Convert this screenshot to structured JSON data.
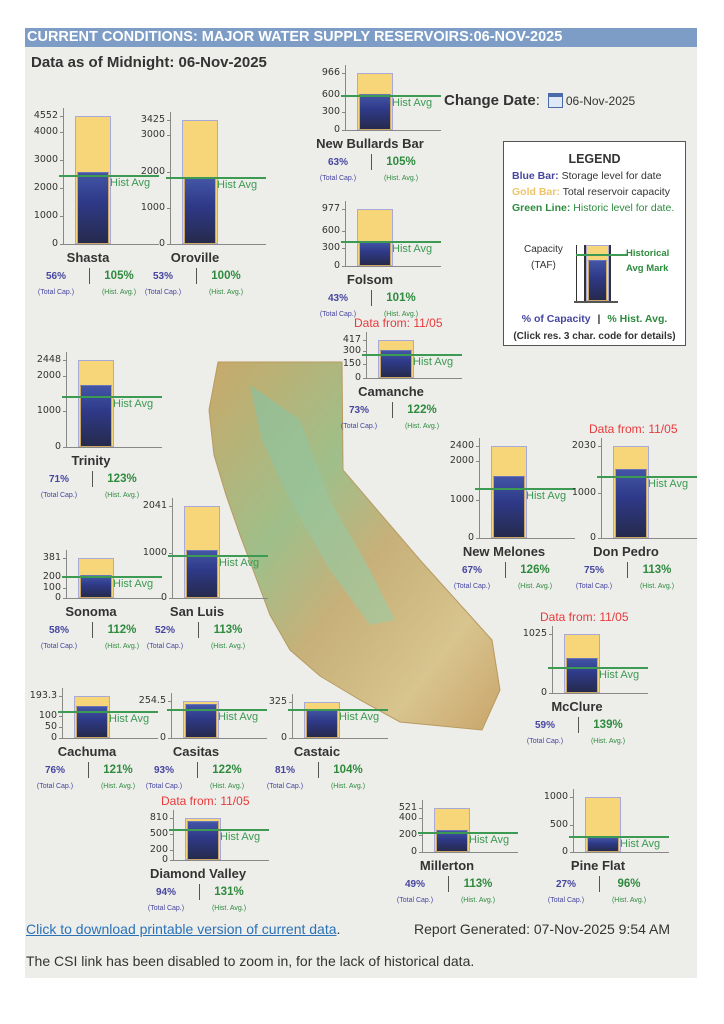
{
  "header": {
    "title": "CURRENT CONDITIONS: MAJOR WATER SUPPLY RESERVOIRS:06-NOV-2025"
  },
  "as_of": "Data as of Midnight: 06-Nov-2025",
  "change_date": {
    "label": "Change Date",
    "colon": ":",
    "value": "06-Nov-2025",
    "icon": "calendar-icon"
  },
  "legend": {
    "title": "LEGEND",
    "blue_key": "Blue Bar:",
    "blue_text": "Storage level for date",
    "gold_key": "Gold Bar:",
    "gold_text": "Total reservoir capacity",
    "green_key": "Green Line:",
    "green_text": "Historic level for date.",
    "capacity": "Capacity",
    "taf": "(TAF)",
    "hist1": "Historical",
    "hist2": "Avg Mark",
    "pct_cap": "% of Capacity",
    "sep": "|",
    "pct_hist": "% Hist. Avg.",
    "click_note": "(Click res. 3 char. code for details)"
  },
  "labels": {
    "hist_avg": "Hist Avg",
    "total_cap": "(Total Cap.)",
    "hist_avg_sub": "(Hist. Avg.)",
    "sep": "|"
  },
  "colors": {
    "storage": "#3a4a9c",
    "capacity": "#f6d678",
    "historic": "#3d9a52",
    "header": "#7d9dc7",
    "stale_note": "#e83a3a"
  },
  "chart_data": {
    "type": "bar",
    "units": "TAF",
    "reservoirs": [
      {
        "name": "Shasta",
        "capacity": 4552,
        "ticks": [
          0,
          1000,
          2000,
          3000,
          4000,
          4552
        ],
        "pct_capacity": "56%",
        "pct_hist": "105%",
        "data_from": ""
      },
      {
        "name": "Oroville",
        "capacity": 3425,
        "ticks": [
          0,
          1000,
          2000,
          3000,
          3425
        ],
        "pct_capacity": "53%",
        "pct_hist": "100%",
        "data_from": ""
      },
      {
        "name": "New Bullards Bar",
        "capacity": 966,
        "ticks": [
          0,
          300,
          600,
          966
        ],
        "pct_capacity": "63%",
        "pct_hist": "105%",
        "data_from": ""
      },
      {
        "name": "Folsom",
        "capacity": 977,
        "ticks": [
          0,
          300,
          600,
          977
        ],
        "pct_capacity": "43%",
        "pct_hist": "101%",
        "data_from": ""
      },
      {
        "name": "Trinity",
        "capacity": 2448,
        "ticks": [
          0,
          1000,
          2000,
          2448
        ],
        "pct_capacity": "71%",
        "pct_hist": "123%",
        "data_from": ""
      },
      {
        "name": "Camanche",
        "capacity": 417,
        "ticks": [
          0,
          150,
          300,
          417
        ],
        "pct_capacity": "73%",
        "pct_hist": "122%",
        "data_from": "Data from: 11/05"
      },
      {
        "name": "New Melones",
        "capacity": 2400,
        "ticks": [
          0,
          1000,
          2000,
          2400
        ],
        "pct_capacity": "67%",
        "pct_hist": "126%",
        "data_from": ""
      },
      {
        "name": "Don Pedro",
        "capacity": 2030,
        "ticks": [
          0,
          1000,
          2030
        ],
        "pct_capacity": "75%",
        "pct_hist": "113%",
        "data_from": "Data from: 11/05"
      },
      {
        "name": "Sonoma",
        "capacity": 381,
        "ticks": [
          0,
          100,
          200,
          381
        ],
        "pct_capacity": "58%",
        "pct_hist": "112%",
        "data_from": ""
      },
      {
        "name": "San Luis",
        "capacity": 2041,
        "ticks": [
          0,
          1000,
          2041
        ],
        "pct_capacity": "52%",
        "pct_hist": "113%",
        "data_from": ""
      },
      {
        "name": "McClure",
        "capacity": 1025,
        "ticks": [
          0,
          1025
        ],
        "pct_capacity": "59%",
        "pct_hist": "139%",
        "data_from": "Data from: 11/05"
      },
      {
        "name": "Cachuma",
        "capacity": 193.3,
        "ticks": [
          0,
          50,
          100,
          193.3
        ],
        "pct_capacity": "76%",
        "pct_hist": "121%",
        "data_from": ""
      },
      {
        "name": "Casitas",
        "capacity": 254.5,
        "ticks": [
          0,
          254.5
        ],
        "pct_capacity": "93%",
        "pct_hist": "122%",
        "data_from": ""
      },
      {
        "name": "Castaic",
        "capacity": 325,
        "ticks": [
          0,
          325
        ],
        "pct_capacity": "81%",
        "pct_hist": "104%",
        "data_from": ""
      },
      {
        "name": "Diamond Valley",
        "capacity": 810,
        "ticks": [
          0,
          200,
          500,
          810
        ],
        "pct_capacity": "94%",
        "pct_hist": "131%",
        "data_from": "Data from: 11/05"
      },
      {
        "name": "Millerton",
        "capacity": 521,
        "ticks": [
          0,
          200,
          400,
          521
        ],
        "pct_capacity": "49%",
        "pct_hist": "113%",
        "data_from": ""
      },
      {
        "name": "Pine Flat",
        "capacity": 1000,
        "ticks": [
          0,
          500,
          1000
        ],
        "pct_capacity": "27%",
        "pct_hist": "96%",
        "data_from": ""
      }
    ]
  },
  "footer": {
    "download_link": "Click to download printable version of current data",
    "period": ".",
    "report_generated": "Report Generated: 07-Nov-2025 9:54 AM",
    "note": "The CSI link has been disabled to zoom in, for the lack of historical data."
  }
}
